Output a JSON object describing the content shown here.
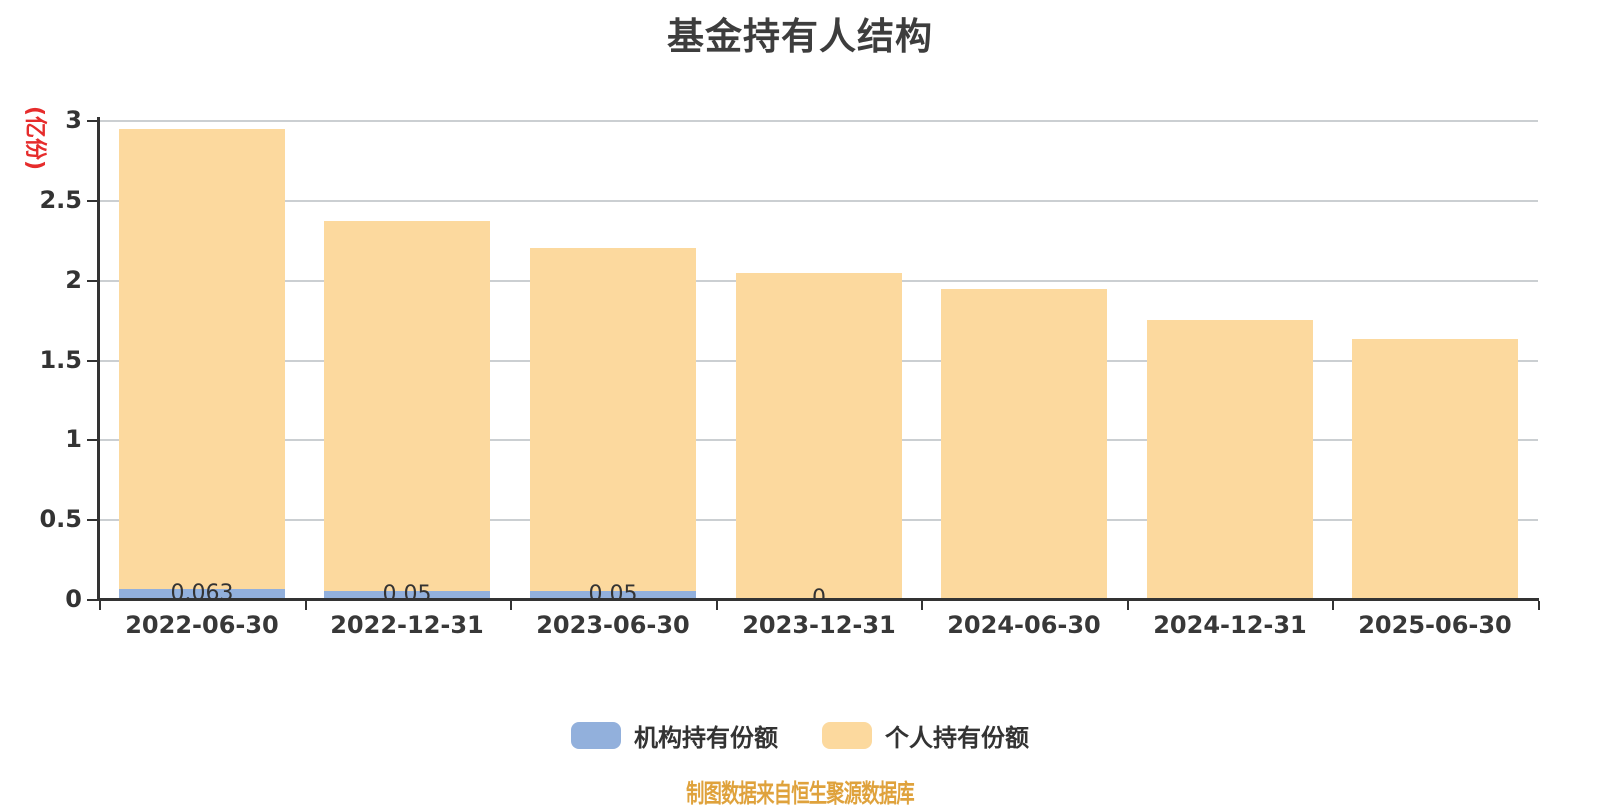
{
  "title": "基金持有人结构",
  "footer": "制图数据来自恒生聚源数据库",
  "y_axis": {
    "name": "(亿份)",
    "name_color": "#e62c2c",
    "tick_labels": [
      "3",
      "2.5",
      "2",
      "1.5",
      "1",
      "0.5",
      "0"
    ]
  },
  "legend": {
    "items": [
      {
        "label": "机构持有份额",
        "color": "#92b0dc"
      },
      {
        "label": "个人持有份额",
        "color": "#fcd99e"
      }
    ]
  },
  "colors": {
    "institutional": "#92b0dc",
    "individual": "#fcd99e",
    "gridline": "#cbcfd2",
    "axis": "#333333",
    "title": "#3d3d3d",
    "footer": "#dfa23c"
  },
  "chart_data": {
    "type": "bar",
    "stacked": true,
    "title": "基金持有人结构",
    "ylabel": "(亿份)",
    "ylim": [
      0,
      3
    ],
    "ytick_step": 0.5,
    "grid": true,
    "legend_position": "bottom",
    "categories": [
      "2022-06-30",
      "2022-12-31",
      "2023-06-30",
      "2023-12-31",
      "2024-06-30",
      "2024-12-31",
      "2025-06-30"
    ],
    "series": [
      {
        "name": "机构持有份额",
        "color": "#92b0dc",
        "values": [
          0.063,
          0.05,
          0.05,
          0,
          0,
          0,
          0
        ]
      },
      {
        "name": "个人持有份额",
        "color": "#fcd99e",
        "values": [
          2.88,
          2.32,
          2.15,
          2.04,
          1.94,
          1.75,
          1.63
        ]
      }
    ],
    "totals": [
      2.94,
      2.37,
      2.2,
      2.04,
      1.94,
      1.75,
      1.63
    ],
    "bar_value_labels": [
      "0.063",
      "0.05",
      "0.05",
      "0",
      "",
      "",
      ""
    ]
  }
}
